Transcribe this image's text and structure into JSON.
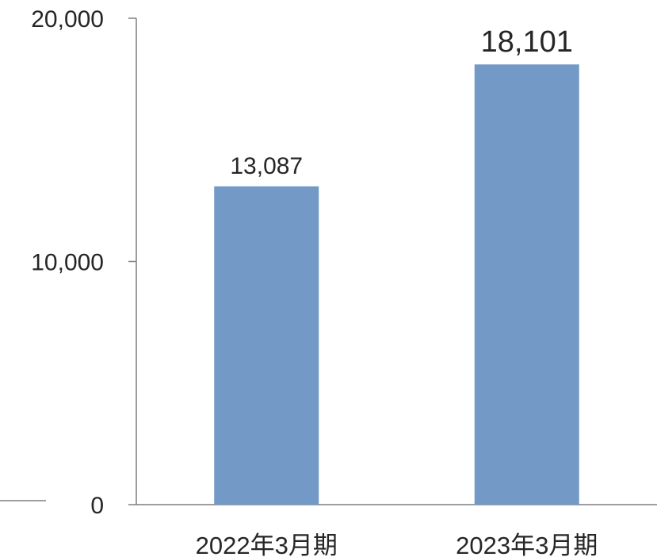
{
  "chart_data": {
    "type": "bar",
    "categories": [
      "2022年3月期",
      "2023年3月期"
    ],
    "values": [
      13087,
      18101
    ],
    "data_labels": [
      "13,087",
      "18,101"
    ],
    "y_ticks": [
      {
        "value": 0,
        "label": "0"
      },
      {
        "value": 10000,
        "label": "10,000"
      },
      {
        "value": 20000,
        "label": "20,000"
      }
    ],
    "ylim": [
      0,
      20000
    ],
    "grid": false,
    "legend": "none",
    "bar_color": "#7399c6",
    "axis_color": "#7f7f7f",
    "text_color": "#262626"
  }
}
